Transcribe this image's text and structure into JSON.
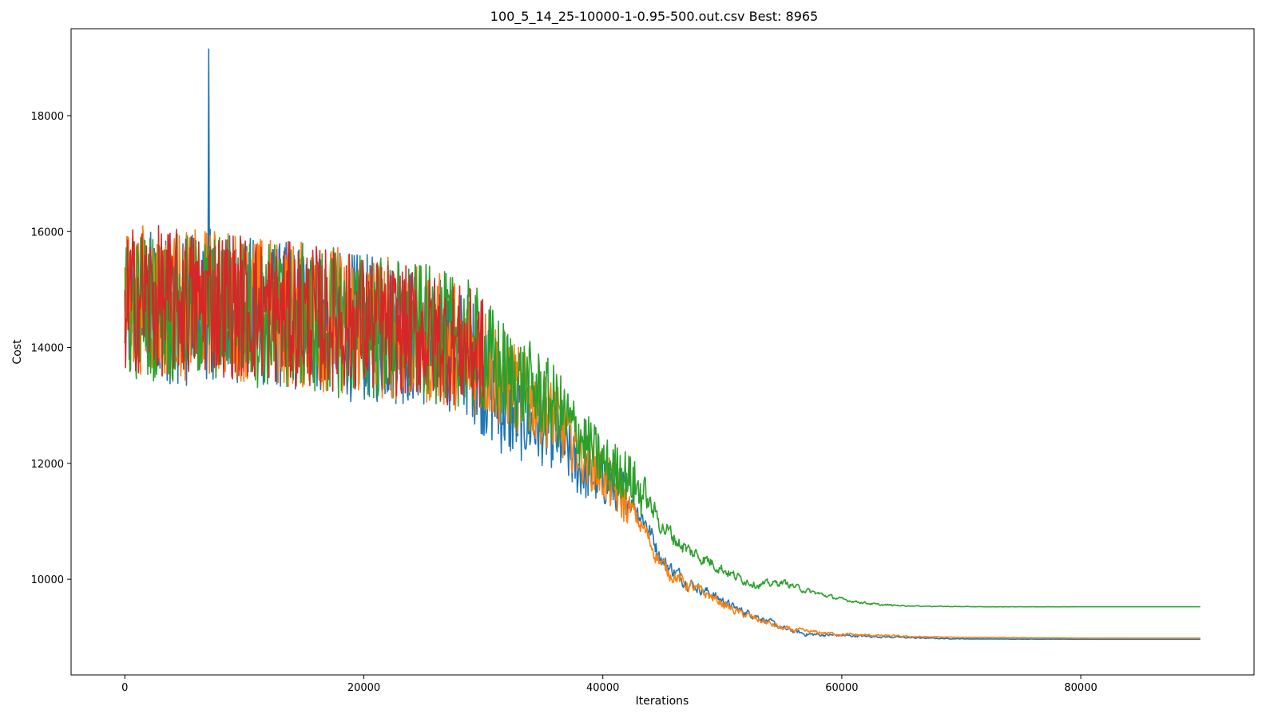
{
  "chart_data": {
    "type": "line",
    "title": "100_5_14_25-10000-1-0.95-500.out.csv Best: 8965",
    "xlabel": "Iterations",
    "ylabel": "Cost",
    "xlim": [
      -4500,
      94500
    ],
    "ylim": [
      8350,
      19500
    ],
    "xticks": [
      0,
      20000,
      40000,
      60000,
      80000
    ],
    "yticks": [
      10000,
      12000,
      14000,
      16000,
      18000
    ],
    "grid": false,
    "legend": "none",
    "series": [
      {
        "color": "#1f77b4",
        "x": [
          0,
          1500,
          3000,
          5000,
          7000,
          9000,
          11000,
          13000,
          15000,
          17000,
          19000,
          21000,
          23000,
          25000,
          27000,
          29000,
          30500,
          32000,
          34000,
          36000,
          38000,
          40000,
          42000,
          43500,
          45000,
          47000,
          49000,
          51000,
          53000,
          55000,
          57000,
          60000,
          63000,
          66000,
          69000,
          72000,
          76000,
          80000,
          85000,
          90000
        ],
        "y": [
          14600,
          14800,
          14700,
          14600,
          14750,
          14700,
          14600,
          14550,
          14500,
          14450,
          14350,
          14300,
          14250,
          14150,
          14050,
          13850,
          13300,
          12900,
          12700,
          12500,
          11900,
          11700,
          11500,
          11000,
          10300,
          9950,
          9750,
          9500,
          9350,
          9150,
          9050,
          9030,
          9010,
          8990,
          8975,
          8970,
          8968,
          8966,
          8965,
          8965
        ],
        "noise": [
          1300,
          1300,
          1300,
          1300,
          1300,
          1300,
          1300,
          1300,
          1300,
          1300,
          1300,
          1300,
          1250,
          1200,
          1150,
          1100,
          1000,
          850,
          700,
          600,
          500,
          450,
          400,
          350,
          250,
          200,
          150,
          120,
          100,
          80,
          60,
          40,
          30,
          20,
          10,
          5,
          3,
          2,
          0,
          0
        ],
        "spike": {
          "x": 7000,
          "y": 19150
        }
      },
      {
        "color": "#ff7f0e",
        "x": [
          0,
          1500,
          3000,
          5000,
          7000,
          9000,
          11000,
          13000,
          15000,
          17000,
          19000,
          21000,
          23000,
          25000,
          27000,
          29000,
          30500,
          32000,
          34000,
          36000,
          38000,
          40000,
          42000,
          43500,
          45000,
          47000,
          49000,
          51000,
          53000,
          55000,
          57000,
          60000,
          63000,
          66000,
          69000,
          72000,
          76000,
          80000,
          85000,
          90000
        ],
        "y": [
          14700,
          14850,
          14750,
          14700,
          14800,
          14750,
          14650,
          14600,
          14550,
          14500,
          14450,
          14400,
          14300,
          14200,
          14100,
          13950,
          13700,
          13400,
          13100,
          12800,
          12200,
          11800,
          11300,
          10800,
          10200,
          9900,
          9700,
          9450,
          9300,
          9150,
          9100,
          9050,
          9030,
          9010,
          9000,
          8995,
          8990,
          8985,
          8985,
          8985
        ],
        "noise": [
          1300,
          1300,
          1300,
          1300,
          1300,
          1300,
          1300,
          1300,
          1300,
          1300,
          1300,
          1300,
          1250,
          1200,
          1150,
          1100,
          1000,
          850,
          700,
          600,
          500,
          450,
          400,
          350,
          250,
          200,
          150,
          120,
          100,
          80,
          60,
          40,
          30,
          20,
          10,
          5,
          3,
          2,
          0,
          0
        ]
      },
      {
        "color": "#2ca02c",
        "x": [
          0,
          1500,
          3000,
          5000,
          7000,
          9000,
          11000,
          13000,
          15000,
          17000,
          19000,
          21000,
          23000,
          25000,
          27000,
          29000,
          30500,
          32000,
          34000,
          36000,
          38000,
          40000,
          42000,
          43500,
          45000,
          47000,
          49000,
          51000,
          53000,
          55000,
          57000,
          60000,
          63000,
          66000,
          69000,
          72000,
          76000,
          80000,
          85000,
          90000
        ],
        "y": [
          14600,
          14750,
          14700,
          14650,
          14700,
          14650,
          14600,
          14550,
          14500,
          14450,
          14400,
          14350,
          14300,
          14250,
          14150,
          14050,
          13800,
          13500,
          13300,
          13000,
          12500,
          12000,
          11800,
          11400,
          10900,
          10500,
          10300,
          10050,
          9900,
          9950,
          9800,
          9650,
          9560,
          9540,
          9530,
          9525,
          9525,
          9525,
          9525,
          9525
        ],
        "noise": [
          1300,
          1300,
          1300,
          1300,
          1300,
          1300,
          1300,
          1300,
          1300,
          1300,
          1300,
          1300,
          1250,
          1200,
          1150,
          1100,
          1000,
          900,
          800,
          700,
          550,
          500,
          450,
          400,
          300,
          250,
          200,
          150,
          120,
          100,
          80,
          50,
          30,
          15,
          8,
          4,
          2,
          0,
          0,
          0
        ]
      },
      {
        "color": "#d62728",
        "x": [
          0,
          1500,
          3000,
          5000,
          7000,
          9000,
          11000,
          13000,
          15000,
          17000,
          19000,
          21000,
          23000,
          25000,
          27000,
          29000,
          30000
        ],
        "y": [
          14800,
          14850,
          14800,
          14750,
          14800,
          14750,
          14650,
          14600,
          14550,
          14500,
          14450,
          14350,
          14300,
          14200,
          14100,
          13950,
          13900
        ],
        "noise": [
          1300,
          1300,
          1300,
          1300,
          1300,
          1300,
          1300,
          1250,
          1250,
          1250,
          1200,
          1200,
          1150,
          1100,
          1100,
          1050,
          1000
        ]
      }
    ]
  }
}
